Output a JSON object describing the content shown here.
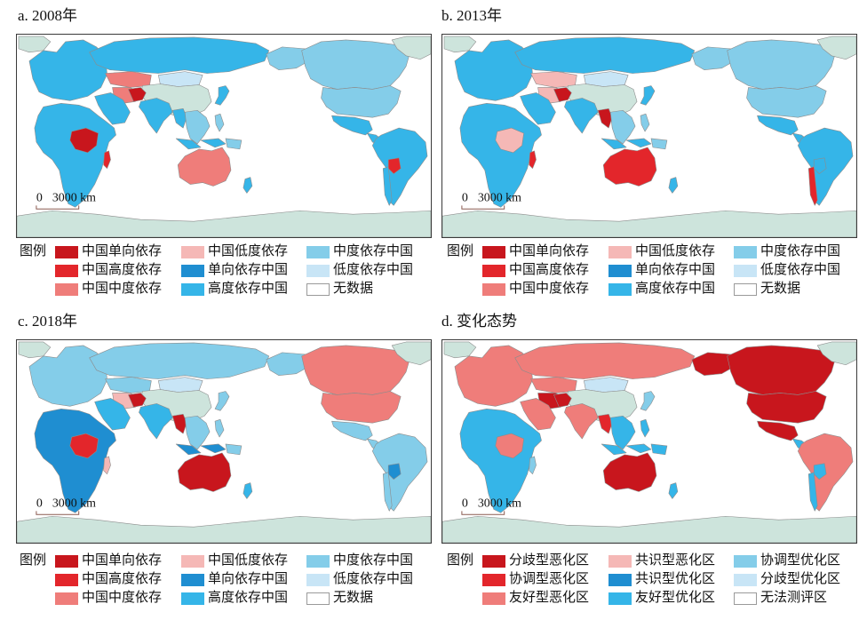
{
  "legend_title": "图例",
  "scale_bar": {
    "zero": "0",
    "distance": "3000 km"
  },
  "colors": {
    "unclassified_land": "#cde4dc"
  },
  "panels": [
    {
      "title": "a. 2008年",
      "legend": [
        {
          "label": "中国单向依存",
          "color": "#c8161d"
        },
        {
          "label": "中国高度依存",
          "color": "#e3262b"
        },
        {
          "label": "中国中度依存",
          "color": "#ef7d7a"
        },
        {
          "label": "中国低度依存",
          "color": "#f5b8b6"
        },
        {
          "label": "单向依存中国",
          "color": "#1f8ed1"
        },
        {
          "label": "高度依存中国",
          "color": "#35b5e8"
        },
        {
          "label": "中度依存中国",
          "color": "#84cde9"
        },
        {
          "label": "低度依存中国",
          "color": "#c8e5f6"
        },
        {
          "label": "无数据",
          "color": "#ffffff"
        }
      ]
    },
    {
      "title": "b. 2013年",
      "legend": [
        {
          "label": "中国单向依存",
          "color": "#c8161d"
        },
        {
          "label": "中国高度依存",
          "color": "#e3262b"
        },
        {
          "label": "中国中度依存",
          "color": "#ef7d7a"
        },
        {
          "label": "中国低度依存",
          "color": "#f5b8b6"
        },
        {
          "label": "单向依存中国",
          "color": "#1f8ed1"
        },
        {
          "label": "高度依存中国",
          "color": "#35b5e8"
        },
        {
          "label": "中度依存中国",
          "color": "#84cde9"
        },
        {
          "label": "低度依存中国",
          "color": "#c8e5f6"
        },
        {
          "label": "无数据",
          "color": "#ffffff"
        }
      ]
    },
    {
      "title": "c. 2018年",
      "legend": [
        {
          "label": "中国单向依存",
          "color": "#c8161d"
        },
        {
          "label": "中国高度依存",
          "color": "#e3262b"
        },
        {
          "label": "中国中度依存",
          "color": "#ef7d7a"
        },
        {
          "label": "中国低度依存",
          "color": "#f5b8b6"
        },
        {
          "label": "单向依存中国",
          "color": "#1f8ed1"
        },
        {
          "label": "高度依存中国",
          "color": "#35b5e8"
        },
        {
          "label": "中度依存中国",
          "color": "#84cde9"
        },
        {
          "label": "低度依存中国",
          "color": "#c8e5f6"
        },
        {
          "label": "无数据",
          "color": "#ffffff"
        }
      ]
    },
    {
      "title": "d. 变化态势",
      "legend": [
        {
          "label": "分歧型恶化区",
          "color": "#c8161d"
        },
        {
          "label": "协调型恶化区",
          "color": "#e3262b"
        },
        {
          "label": "友好型恶化区",
          "color": "#ef7d7a"
        },
        {
          "label": "共识型恶化区",
          "color": "#f5b8b6"
        },
        {
          "label": "共识型优化区",
          "color": "#1f8ed1"
        },
        {
          "label": "友好型优化区",
          "color": "#35b5e8"
        },
        {
          "label": "协调型优化区",
          "color": "#84cde9"
        },
        {
          "label": "分歧型优化区",
          "color": "#c8e5f6"
        },
        {
          "label": "无法测评区",
          "color": "#ffffff"
        }
      ]
    }
  ]
}
